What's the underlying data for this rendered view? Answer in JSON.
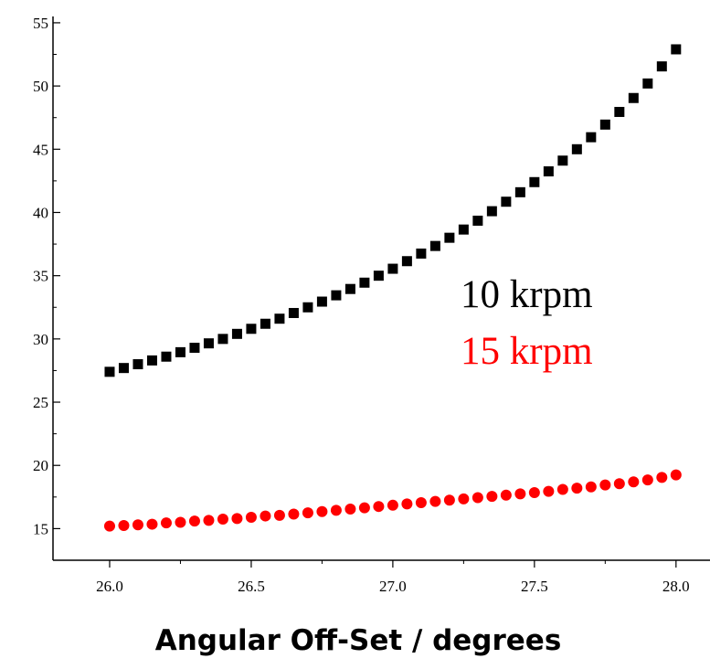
{
  "chart_data": {
    "type": "scatter",
    "title": "",
    "xlabel": "Angular Off-Set / degrees",
    "ylabel": "",
    "xlim": [
      25.8,
      28.12
    ],
    "ylim": [
      12.5,
      55.5
    ],
    "xticks": [
      "26.0",
      "26.5",
      "27.0",
      "27.5",
      "28.0"
    ],
    "yticks": [
      "15",
      "20",
      "25",
      "30",
      "35",
      "40",
      "45",
      "50",
      "55"
    ],
    "grid": false,
    "legend": {
      "placement": "right",
      "entries": [
        {
          "label": "10 krpm",
          "color": "#000000"
        },
        {
          "label": "15 krpm",
          "color": "#ff0000"
        }
      ]
    },
    "series": [
      {
        "name": "10 krpm",
        "marker": "square",
        "color": "#000000",
        "x": [
          26.0,
          26.05,
          26.1,
          26.15,
          26.2,
          26.25,
          26.3,
          26.35,
          26.4,
          26.45,
          26.5,
          26.55,
          26.6,
          26.65,
          26.7,
          26.75,
          26.8,
          26.85,
          26.9,
          26.95,
          27.0,
          27.05,
          27.1,
          27.15,
          27.2,
          27.25,
          27.3,
          27.35,
          27.4,
          27.45,
          27.5,
          27.55,
          27.6,
          27.65,
          27.7,
          27.75,
          27.8,
          27.85,
          27.9,
          27.95,
          28.0
        ],
        "y": [
          27.4,
          27.7,
          28.0,
          28.3,
          28.6,
          28.95,
          29.3,
          29.65,
          30.0,
          30.4,
          30.8,
          31.2,
          31.6,
          32.05,
          32.5,
          32.95,
          33.45,
          33.95,
          34.45,
          35.0,
          35.55,
          36.15,
          36.75,
          37.35,
          38.0,
          38.65,
          39.35,
          40.1,
          40.85,
          41.6,
          42.4,
          43.25,
          44.1,
          45.0,
          45.95,
          46.95,
          47.95,
          49.05,
          50.2,
          51.55,
          52.9
        ]
      },
      {
        "name": "15 krpm",
        "marker": "circle",
        "color": "#ff0000",
        "x": [
          26.0,
          26.05,
          26.1,
          26.15,
          26.2,
          26.25,
          26.3,
          26.35,
          26.4,
          26.45,
          26.5,
          26.55,
          26.6,
          26.65,
          26.7,
          26.75,
          26.8,
          26.85,
          26.9,
          26.95,
          27.0,
          27.05,
          27.1,
          27.15,
          27.2,
          27.25,
          27.3,
          27.35,
          27.4,
          27.45,
          27.5,
          27.55,
          27.6,
          27.65,
          27.7,
          27.75,
          27.8,
          27.85,
          27.9,
          27.95,
          28.0
        ],
        "y": [
          15.2,
          15.25,
          15.3,
          15.35,
          15.45,
          15.5,
          15.6,
          15.65,
          15.75,
          15.8,
          15.9,
          16.0,
          16.05,
          16.15,
          16.25,
          16.35,
          16.45,
          16.55,
          16.65,
          16.75,
          16.85,
          16.95,
          17.05,
          17.15,
          17.25,
          17.35,
          17.45,
          17.55,
          17.65,
          17.75,
          17.85,
          17.95,
          18.1,
          18.2,
          18.3,
          18.45,
          18.55,
          18.7,
          18.85,
          19.05,
          19.25
        ]
      }
    ]
  }
}
